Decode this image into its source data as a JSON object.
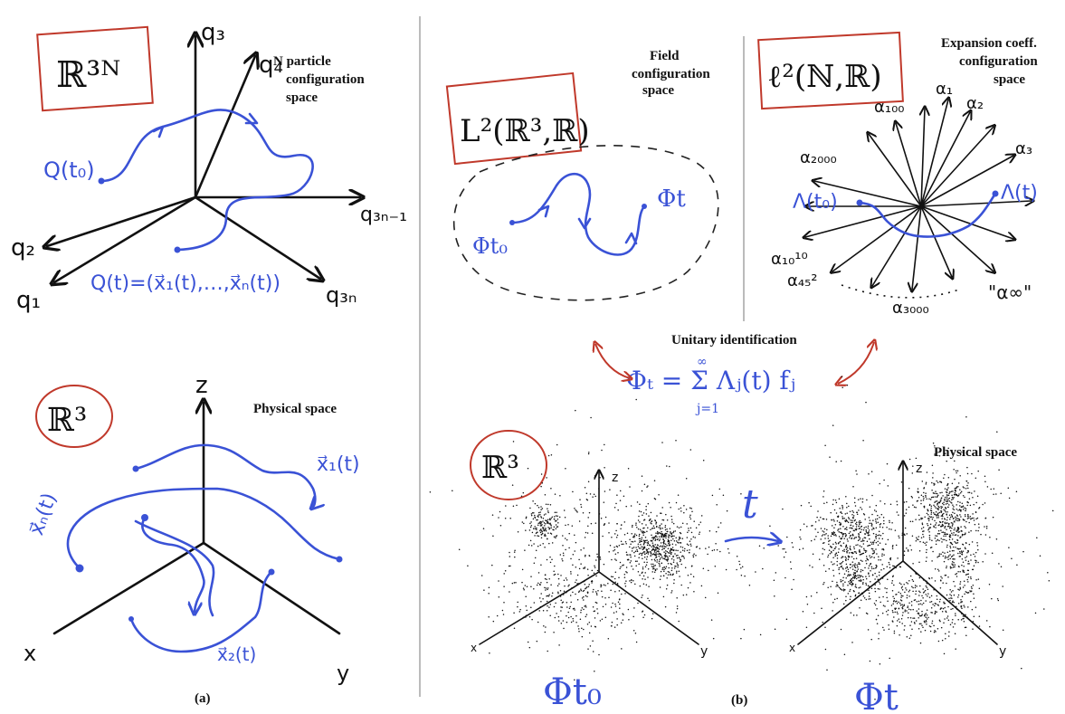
{
  "colors": {
    "ink": "#111111",
    "blue": "#3a52d6",
    "red": "#c0392b",
    "separator": "#bbbbbb"
  },
  "panel_a": {
    "config_box_label": "ℝ³ᴺ",
    "config_caption": [
      "N particle",
      "configuration",
      "space"
    ],
    "axes": {
      "q1": "q₁",
      "q2": "q₂",
      "q3": "q₃",
      "q4": "q₄",
      "q3n1": "q₃ₙ₋₁",
      "q3n": "q₃ₙ"
    },
    "traj_start_label": "Q(t₀)",
    "traj_equation": "Q(t)=(x⃗₁(t),…,x⃗ₙ(t))",
    "physical_circle_label": "ℝ³",
    "physical_caption": "Physical space",
    "physical_axes": {
      "z": "z",
      "x": "x",
      "y": "y"
    },
    "particle_labels": {
      "x1": "x⃗₁(t)",
      "x2": "x⃗₂(t)",
      "xN": "x⃗ₙ(t)"
    },
    "caption": "(a)"
  },
  "panel_b": {
    "field_box_label": "L²(ℝ³,ℝ)",
    "field_caption": [
      "Field",
      "configuration",
      "space"
    ],
    "field_start_label": "Φt₀",
    "field_end_label": "Φt",
    "l2_box_label": "ℓ²(ℕ,ℝ)",
    "l2_caption": [
      "Expansion coeff.",
      "configuration",
      "space"
    ],
    "l2_axes": {
      "a1": "α₁",
      "a2": "α₂",
      "a3": "α₃",
      "a100": "α₁₀₀",
      "a2000": "α₂₀₀₀",
      "a10_10": "α₁₀¹⁰",
      "a45": "α₄₅²",
      "a3000": "α₃₀₀₀",
      "ainf": "\"α∞\""
    },
    "l2_start_label": "Λ(t₀)",
    "l2_end_label": "Λ(t)",
    "identification_title": "Unitary identification",
    "identification_formula": "Φₜ = Σ Λⱼ(t) fⱼ",
    "sum_upper": "∞",
    "sum_lower": "j=1",
    "physical_circle_label": "ℝ³",
    "physical_caption": "Physical space",
    "time_arrow_label": "t",
    "field_t0_label": "Φt₀",
    "field_t_label": "Φt",
    "cloud_axes": {
      "z": "z",
      "x": "x",
      "y": "y"
    },
    "caption": "(b)"
  }
}
